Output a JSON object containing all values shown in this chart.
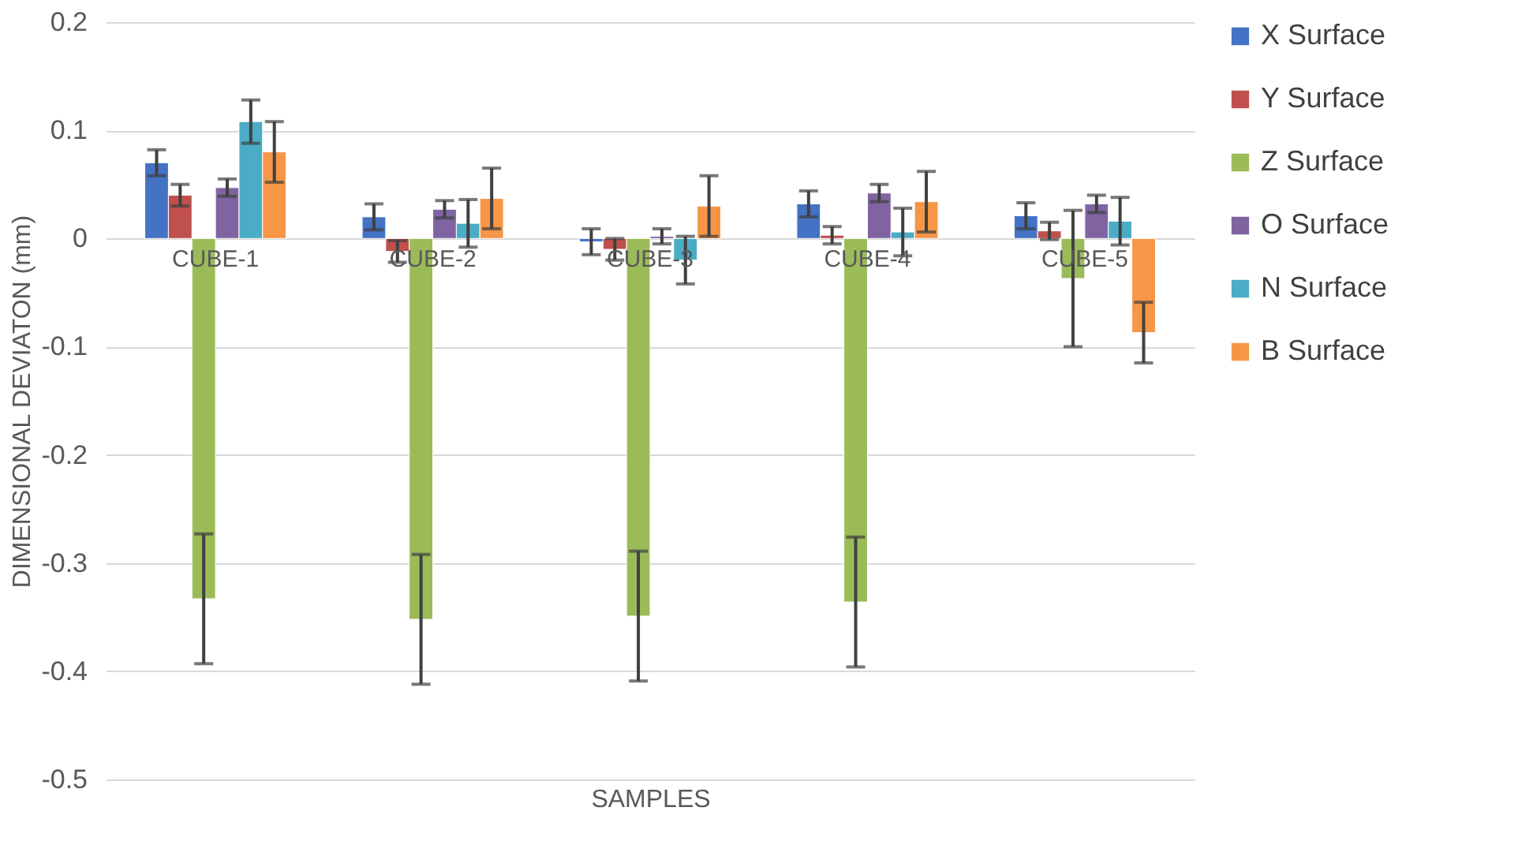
{
  "chart_data": {
    "type": "bar",
    "xlabel": "SAMPLES",
    "ylabel": "DIMENSIONAL DEVIATON (mm)",
    "categories": [
      "CUBE-1",
      "CUBE-2",
      "CUBE-3",
      "CUBE-4",
      "CUBE-5"
    ],
    "series": [
      {
        "name": "X Surface",
        "color": "#4472c4",
        "values": [
          0.07,
          0.02,
          -0.003,
          0.032,
          0.021
        ],
        "errors": [
          0.012,
          0.012,
          0.012,
          0.012,
          0.012
        ]
      },
      {
        "name": "Y Surface",
        "color": "#c0504d",
        "values": [
          0.04,
          -0.012,
          -0.01,
          0.003,
          0.007
        ],
        "errors": [
          0.01,
          0.01,
          0.01,
          0.008,
          0.008
        ]
      },
      {
        "name": "Z Surface",
        "color": "#9bbb59",
        "values": [
          -0.333,
          -0.352,
          -0.349,
          -0.336,
          -0.037
        ],
        "errors": [
          0.06,
          0.06,
          0.06,
          0.06,
          0.063
        ]
      },
      {
        "name": "O Surface",
        "color": "#8064a2",
        "values": [
          0.047,
          0.027,
          0.002,
          0.042,
          0.032
        ],
        "errors": [
          0.008,
          0.008,
          0.007,
          0.008,
          0.008
        ]
      },
      {
        "name": "N Surface",
        "color": "#4bacc6",
        "values": [
          0.108,
          0.014,
          -0.02,
          0.006,
          0.016
        ],
        "errors": [
          0.02,
          0.022,
          0.022,
          0.022,
          0.022
        ]
      },
      {
        "name": "B Surface",
        "color": "#f79646",
        "values": [
          0.08,
          0.037,
          0.03,
          0.034,
          -0.087
        ],
        "errors": [
          0.028,
          0.028,
          0.028,
          0.028,
          0.028
        ]
      }
    ],
    "ylim": [
      -0.5,
      0.2
    ],
    "yticks": [
      -0.5,
      -0.4,
      -0.3,
      -0.2,
      -0.1,
      0,
      0.1,
      0.2
    ],
    "grid": "y",
    "legend": "right"
  }
}
